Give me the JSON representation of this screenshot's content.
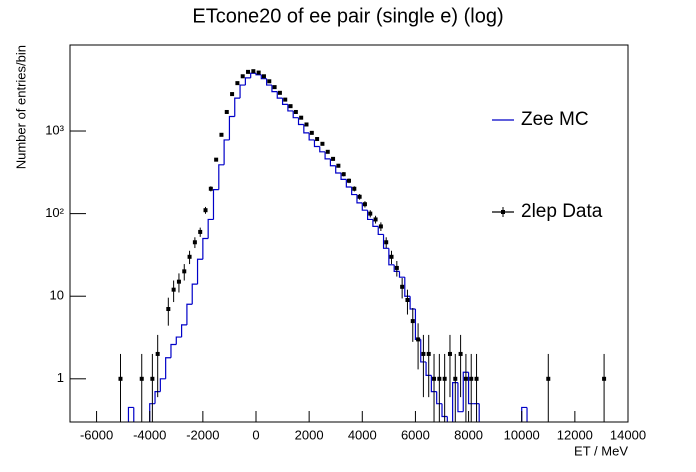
{
  "chart_data": {
    "type": "histogram",
    "title": "ETcone20 of ee pair (single e) (log)",
    "x_label": "ET / MeV",
    "y_label": "Number of entries/bin",
    "log_y": true,
    "xlim": [
      -7000,
      14000
    ],
    "ylim": [
      0.3,
      11000
    ],
    "xticks": [
      -6000,
      -4000,
      -2000,
      0,
      2000,
      4000,
      6000,
      8000,
      10000,
      12000,
      14000
    ],
    "yticks": [
      1,
      10,
      {
        "value": 100,
        "label": "10²"
      },
      {
        "value": 1000,
        "label": "10³"
      }
    ],
    "legend": "right",
    "bins": [
      -5000,
      -4800,
      -4600,
      -4400,
      -4200,
      -4000,
      -3800,
      -3600,
      -3400,
      -3200,
      -3000,
      -2800,
      -2600,
      -2400,
      -2200,
      -2000,
      -1800,
      -1600,
      -1400,
      -1200,
      -1000,
      -800,
      -600,
      -400,
      -200,
      0,
      200,
      400,
      600,
      800,
      1000,
      1200,
      1400,
      1600,
      1800,
      2000,
      2200,
      2400,
      2600,
      2800,
      3000,
      3200,
      3400,
      3600,
      3800,
      4000,
      4200,
      4400,
      4600,
      4800,
      5000,
      5200,
      5400,
      5600,
      5800,
      6000,
      6200,
      6400,
      6600,
      6800,
      7000,
      7200,
      7400,
      7600,
      7800,
      8000,
      8200,
      8400,
      8600,
      8800,
      9000,
      9200,
      9400,
      9600,
      9800,
      10000,
      10200,
      10400
    ],
    "series": [
      {
        "name": "Zee MC",
        "color": "#0000c8",
        "values": [
          0,
          0.45,
          0,
          0,
          0,
          0.5,
          0.7,
          1,
          1.8,
          2.6,
          3.2,
          4.5,
          8,
          14,
          28,
          50,
          85,
          195,
          390,
          780,
          1500,
          2500,
          3600,
          4400,
          5000,
          4800,
          4300,
          3600,
          3000,
          2500,
          2100,
          1750,
          1450,
          1200,
          950,
          780,
          650,
          560,
          460,
          380,
          310,
          260,
          210,
          170,
          135,
          110,
          85,
          70,
          56,
          38,
          24,
          20,
          17,
          10,
          7,
          3,
          1.6,
          1.1,
          0.7,
          0.5,
          0.35,
          0,
          0.9,
          0.4,
          1.2,
          0.5,
          0.5,
          0,
          0,
          0,
          0,
          0,
          0,
          0,
          0,
          0.45,
          0
        ]
      },
      {
        "name": "2lep Data",
        "color": "#000000",
        "x": [
          -5100,
          -4300,
          -3900,
          -3700,
          -3300,
          -3100,
          -2900,
          -2700,
          -2500,
          -2300,
          -2100,
          -1900,
          -1700,
          -1500,
          -1300,
          -1100,
          -900,
          -700,
          -500,
          -300,
          -100,
          100,
          300,
          500,
          700,
          900,
          1100,
          1300,
          1500,
          1700,
          1900,
          2100,
          2300,
          2500,
          2700,
          2900,
          3100,
          3300,
          3500,
          3700,
          3900,
          4100,
          4300,
          4500,
          4700,
          4900,
          5100,
          5300,
          5500,
          5700,
          5900,
          6100,
          6300,
          6500,
          6700,
          6900,
          7100,
          7300,
          7500,
          7700,
          7900,
          8100,
          8300,
          11000,
          13100
        ],
        "values": [
          1,
          1,
          1,
          2,
          7,
          12,
          15,
          20,
          30,
          45,
          60,
          110,
          200,
          450,
          900,
          1700,
          2800,
          3800,
          4600,
          5200,
          5300,
          5100,
          4600,
          4000,
          3400,
          2900,
          2400,
          2000,
          1700,
          1450,
          1200,
          950,
          800,
          700,
          560,
          460,
          380,
          300,
          250,
          200,
          160,
          130,
          100,
          85,
          70,
          45,
          30,
          22,
          13,
          9,
          5,
          3,
          2,
          2,
          1,
          1,
          1,
          2,
          1,
          2,
          1,
          1,
          1,
          1,
          1
        ],
        "errors": [
          1,
          1,
          1,
          1.4,
          2.6,
          3.5,
          3.9,
          4.5,
          5.5,
          6.7,
          7.7,
          10.5,
          14.1,
          21.2,
          30,
          41.2,
          52.9,
          61.6,
          67.8,
          72.1,
          72.8,
          71.4,
          67.8,
          63.2,
          58.3,
          53.9,
          49,
          44.7,
          41.2,
          38.1,
          34.6,
          30.8,
          28.3,
          26.5,
          23.7,
          21.4,
          19.5,
          17.3,
          15.8,
          14.1,
          12.6,
          11.4,
          10,
          9.2,
          8.4,
          6.7,
          5.5,
          4.7,
          3.6,
          3,
          2.2,
          1.7,
          1.4,
          1.4,
          1,
          1,
          1,
          1.4,
          1,
          1.4,
          1,
          1,
          1,
          1,
          1
        ]
      }
    ]
  }
}
